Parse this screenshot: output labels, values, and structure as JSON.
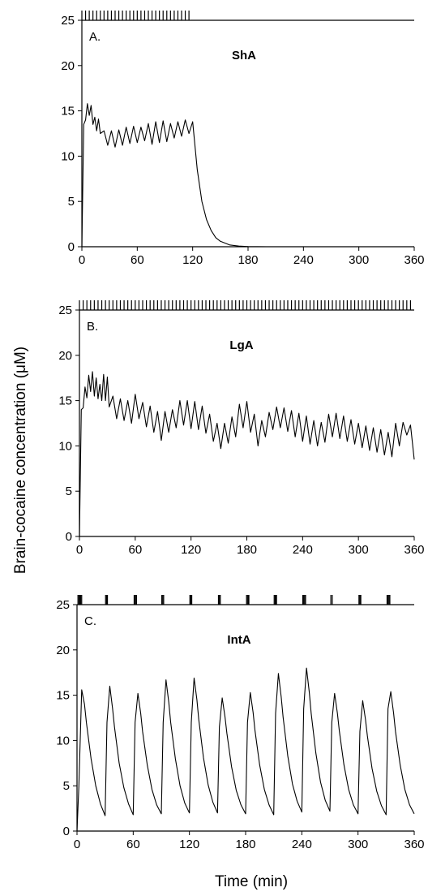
{
  "chart_data": {
    "type": "line",
    "ylabel": "Brain-cocaine concentration (μM)",
    "xlabel": "Time (min)",
    "xlim": [
      0,
      360
    ],
    "ylim": [
      0,
      25
    ],
    "xticks": [
      "0",
      "60",
      "120",
      "180",
      "240",
      "300",
      "360"
    ],
    "yticks": [
      "0",
      "5",
      "10",
      "15",
      "20",
      "25"
    ],
    "panels": [
      {
        "letter": "A.",
        "name": "ShA",
        "infusions_min": [
          0,
          4,
          8,
          12,
          16,
          20,
          24,
          28,
          32,
          36,
          40,
          44,
          48,
          52,
          56,
          60,
          64,
          68,
          72,
          76,
          80,
          84,
          88,
          92,
          96,
          100,
          104,
          108,
          112,
          116
        ],
        "series": {
          "x": [
            0,
            2,
            4,
            6,
            8,
            10,
            12,
            14,
            16,
            18,
            20,
            24,
            28,
            32,
            36,
            40,
            44,
            48,
            52,
            56,
            60,
            64,
            68,
            72,
            76,
            80,
            84,
            88,
            92,
            96,
            100,
            104,
            108,
            112,
            116,
            120,
            125,
            130,
            135,
            140,
            145,
            150,
            160,
            170,
            180,
            200,
            240,
            300,
            360
          ],
          "y": [
            0,
            13.5,
            14,
            15.8,
            14.5,
            15.6,
            13.5,
            14.3,
            12.8,
            14.1,
            12.5,
            12.8,
            11.2,
            12.8,
            11.0,
            12.9,
            11.2,
            13.2,
            11.4,
            13.3,
            11.5,
            13.2,
            11.7,
            13.6,
            11.3,
            13.8,
            11.5,
            13.9,
            11.6,
            13.6,
            12.0,
            13.8,
            12.2,
            14.0,
            12.5,
            13.8,
            8.5,
            5.0,
            3.0,
            1.8,
            1.0,
            0.6,
            0.2,
            0.07,
            0.02,
            0,
            0,
            0,
            0
          ]
        }
      },
      {
        "letter": "B.",
        "name": "LgA",
        "infusions_min": [
          0,
          4,
          8,
          12,
          16,
          20,
          24,
          28,
          32,
          36,
          40,
          44,
          48,
          52,
          56,
          60,
          64,
          68,
          72,
          76,
          80,
          84,
          88,
          92,
          96,
          100,
          104,
          108,
          112,
          116,
          120,
          124,
          128,
          132,
          136,
          140,
          144,
          148,
          152,
          156,
          160,
          164,
          168,
          172,
          176,
          180,
          184,
          188,
          192,
          196,
          200,
          204,
          208,
          212,
          216,
          220,
          224,
          228,
          232,
          236,
          240,
          244,
          248,
          252,
          256,
          260,
          264,
          268,
          272,
          276,
          280,
          284,
          288,
          292,
          296,
          300,
          304,
          308,
          312,
          316,
          320,
          324,
          328,
          332,
          336,
          340,
          344,
          348,
          352,
          356
        ],
        "series": {
          "x": [
            0,
            2,
            4,
            6,
            8,
            10,
            12,
            14,
            16,
            18,
            20,
            22,
            24,
            26,
            28,
            30,
            32,
            36,
            40,
            44,
            48,
            52,
            56,
            60,
            64,
            68,
            72,
            76,
            80,
            84,
            88,
            92,
            96,
            100,
            104,
            108,
            112,
            116,
            120,
            124,
            128,
            132,
            136,
            140,
            144,
            148,
            152,
            156,
            160,
            164,
            168,
            172,
            176,
            180,
            184,
            188,
            192,
            196,
            200,
            204,
            208,
            212,
            216,
            220,
            224,
            228,
            232,
            236,
            240,
            244,
            248,
            252,
            256,
            260,
            264,
            268,
            272,
            276,
            280,
            284,
            288,
            292,
            296,
            300,
            304,
            308,
            312,
            316,
            320,
            324,
            328,
            332,
            336,
            340,
            344,
            348,
            352,
            356,
            360
          ],
          "y": [
            0,
            14,
            14.2,
            16.5,
            15.3,
            17.8,
            16,
            18.2,
            15.5,
            17.5,
            15.2,
            16.8,
            15.0,
            17.9,
            15.0,
            17.6,
            14.3,
            15.5,
            13.0,
            15.2,
            12.8,
            15.0,
            12.5,
            15.7,
            13.0,
            14.8,
            12.1,
            14.4,
            11.5,
            13.8,
            10.6,
            13.8,
            11.5,
            14.0,
            12.0,
            15.0,
            12.3,
            15.0,
            11.9,
            14.9,
            11.8,
            14.4,
            11.4,
            13.5,
            10.5,
            12.5,
            9.7,
            12.5,
            10.3,
            13.2,
            11.0,
            14.6,
            12.0,
            14.9,
            11.5,
            13.5,
            10.0,
            12.8,
            11.0,
            13.7,
            11.8,
            14.3,
            12.0,
            14.2,
            11.6,
            13.9,
            11.0,
            13.6,
            10.5,
            13.3,
            10.2,
            12.8,
            10.0,
            12.6,
            10.4,
            13.5,
            11.0,
            13.6,
            10.8,
            13.3,
            10.5,
            12.9,
            10.2,
            12.5,
            9.8,
            12.2,
            9.5,
            12.0,
            9.3,
            11.8,
            9.0,
            11.5,
            8.8,
            12.5,
            10.0,
            12.6,
            11.2,
            12.3,
            8.5
          ]
        }
      },
      {
        "letter": "C.",
        "name": "IntA",
        "infusions_min": [
          1,
          2,
          3,
          4,
          5,
          30.5,
          31.5,
          32.5,
          61,
          62,
          63,
          63.5,
          90.5,
          91.5,
          92.5,
          120.5,
          121.5,
          122.5,
          151,
          152,
          153,
          181,
          182,
          183,
          183.5,
          210.5,
          211.5,
          212.5,
          213,
          241,
          242,
          243,
          244,
          271,
          272.5,
          301,
          302,
          303,
          331,
          332,
          333,
          334
        ],
        "series": {
          "x": [
            0,
            2,
            5,
            8,
            10,
            15,
            20,
            25,
            30,
            32,
            35,
            38,
            40,
            45,
            50,
            55,
            60,
            62,
            65,
            68,
            70,
            75,
            80,
            85,
            90,
            92,
            95,
            98,
            100,
            105,
            110,
            115,
            120,
            122,
            125,
            128,
            130,
            135,
            140,
            145,
            150,
            152,
            155,
            158,
            160,
            165,
            170,
            175,
            180,
            182,
            185,
            188,
            190,
            195,
            200,
            205,
            210,
            212,
            215,
            218,
            220,
            225,
            230,
            235,
            240,
            242,
            245,
            248,
            250,
            255,
            260,
            265,
            270,
            272,
            275,
            278,
            280,
            285,
            290,
            295,
            300,
            302,
            305,
            308,
            310,
            315,
            320,
            325,
            330,
            332,
            335,
            338,
            340,
            345,
            350,
            355,
            360
          ],
          "y": [
            0,
            5,
            15.6,
            14,
            12,
            8,
            5,
            3,
            1.7,
            12,
            16,
            13.5,
            11.5,
            7.5,
            4.8,
            3,
            1.8,
            12,
            15.2,
            13,
            11,
            7.3,
            4.6,
            2.9,
            1.9,
            12,
            16.7,
            14.2,
            12,
            8,
            5,
            3.1,
            2,
            12,
            16.9,
            14.5,
            12.3,
            8.1,
            5.1,
            3.2,
            2,
            11.5,
            14.7,
            12.6,
            10.8,
            7.1,
            4.5,
            2.9,
            1.9,
            12,
            15.3,
            13.1,
            11.1,
            7.3,
            4.6,
            2.9,
            1.8,
            13,
            17.4,
            14.8,
            12.6,
            8.3,
            5.2,
            3.3,
            2.1,
            13.5,
            18,
            15.3,
            13,
            8.6,
            5.4,
            3.4,
            2.2,
            12,
            15.2,
            13,
            11.1,
            7.3,
            4.6,
            2.9,
            1.9,
            11,
            14.4,
            12.3,
            10.5,
            6.9,
            4.4,
            2.8,
            1.8,
            13.5,
            15.4,
            13,
            11,
            7.3,
            4.6,
            2.9,
            1.9
          ]
        }
      }
    ]
  }
}
